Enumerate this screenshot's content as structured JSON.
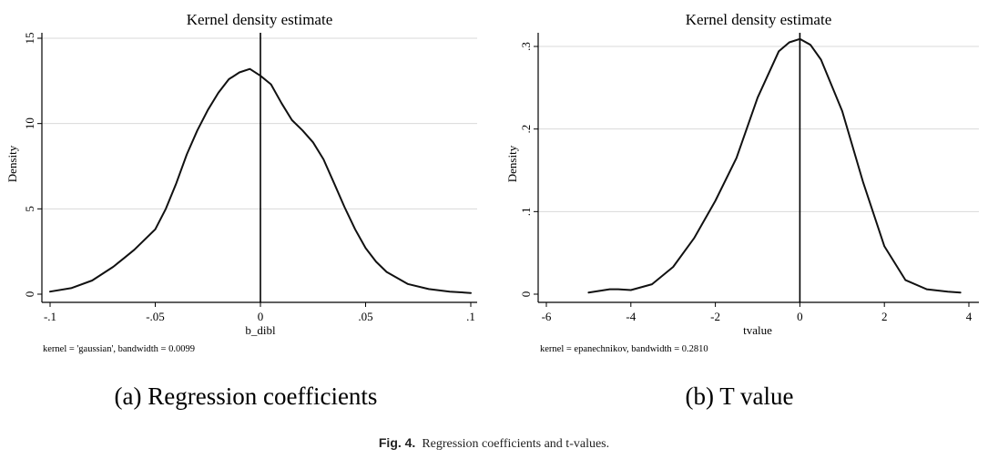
{
  "chart_data": [
    {
      "type": "line",
      "title": "Kernel density estimate",
      "xlabel": "b_dibl",
      "ylabel": "Density",
      "xlim": [
        -0.1,
        0.1
      ],
      "ylim": [
        0,
        15
      ],
      "xticks": [
        -0.1,
        -0.05,
        0,
        0.05,
        0.1
      ],
      "xtick_labels": [
        "-.1",
        "-.05",
        "0",
        ".05",
        ".1"
      ],
      "yticks": [
        0,
        5,
        10,
        15
      ],
      "ytick_labels": [
        "0",
        "5",
        "10",
        "15"
      ],
      "grid": true,
      "reference_line_x": 0,
      "note": "kernel = 'gaussian', bandwidth = 0.0099",
      "subcaption": "(a) Regression coefficients",
      "series": [
        {
          "x": [
            -0.1,
            -0.09,
            -0.08,
            -0.07,
            -0.065,
            -0.06,
            -0.05,
            -0.045,
            -0.04,
            -0.035,
            -0.03,
            -0.025,
            -0.02,
            -0.015,
            -0.01,
            -0.005,
            0,
            0.005,
            0.01,
            0.015,
            0.02,
            0.025,
            0.03,
            0.035,
            0.04,
            0.045,
            0.05,
            0.055,
            0.06,
            0.07,
            0.08,
            0.09,
            0.1
          ],
          "y": [
            0.15,
            0.35,
            0.8,
            1.6,
            2.1,
            2.6,
            3.8,
            5.0,
            6.5,
            8.2,
            9.6,
            10.8,
            11.8,
            12.6,
            13.0,
            13.2,
            12.8,
            12.3,
            11.2,
            10.2,
            9.6,
            8.9,
            7.9,
            6.5,
            5.1,
            3.8,
            2.7,
            1.9,
            1.3,
            0.6,
            0.3,
            0.15,
            0.07
          ]
        }
      ]
    },
    {
      "type": "line",
      "title": "Kernel density estimate",
      "xlabel": "tvalue",
      "ylabel": "Density",
      "xlim": [
        -6,
        4
      ],
      "ylim": [
        0,
        0.3
      ],
      "xticks": [
        -6,
        -4,
        -2,
        0,
        2,
        4
      ],
      "xtick_labels": [
        "-6",
        "-4",
        "-2",
        "0",
        "2",
        "4"
      ],
      "yticks": [
        0,
        0.1,
        0.2,
        0.3
      ],
      "ytick_labels": [
        "0",
        ".1",
        ".2",
        ".3"
      ],
      "grid": true,
      "reference_line_x": 0,
      "note": "kernel = epanechnikov, bandwidth = 0.2810",
      "subcaption": "(b) T value",
      "series": [
        {
          "x": [
            -5,
            -4.5,
            -4.3,
            -4,
            -3.5,
            -3,
            -2.5,
            -2,
            -1.5,
            -1,
            -0.5,
            -0.25,
            0,
            0.25,
            0.5,
            1,
            1.5,
            2,
            2.5,
            3,
            3.5,
            3.8
          ],
          "y": [
            0.002,
            0.006,
            0.006,
            0.005,
            0.012,
            0.033,
            0.068,
            0.113,
            0.165,
            0.238,
            0.294,
            0.305,
            0.309,
            0.302,
            0.284,
            0.222,
            0.135,
            0.058,
            0.017,
            0.006,
            0.003,
            0.002
          ]
        }
      ]
    }
  ],
  "caption": {
    "label": "Fig. 4.",
    "text": "Regression coefficients and t-values."
  }
}
